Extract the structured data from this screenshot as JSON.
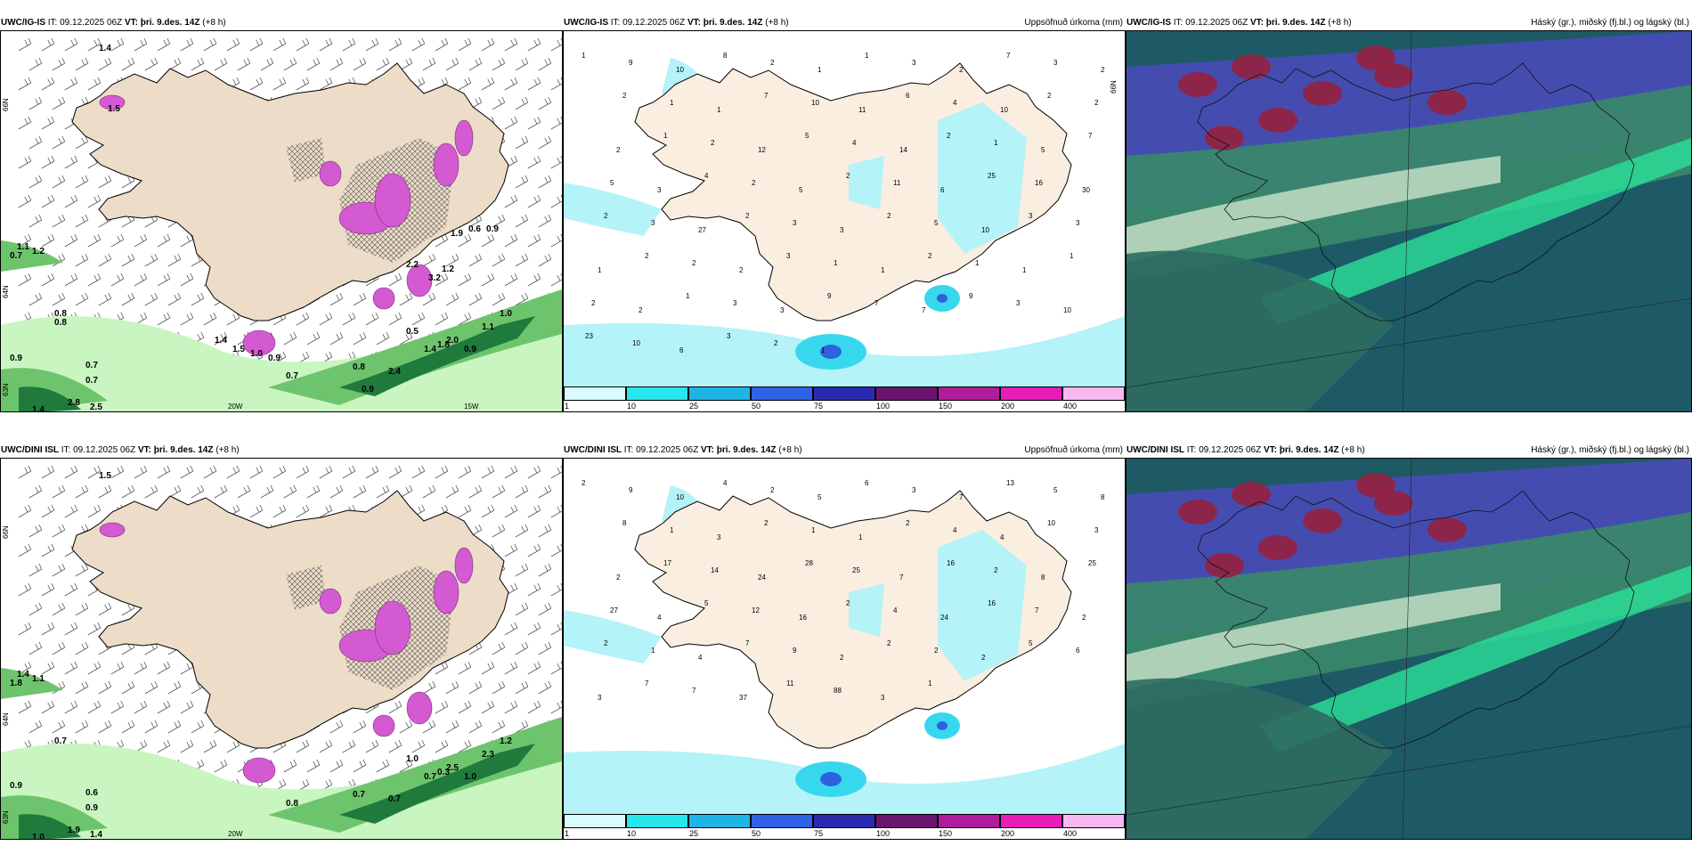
{
  "colors": {
    "land": "#ecdcc8",
    "sea": "#ffffff",
    "magenta": "#d45ad2",
    "green_light": "#c9f5c1",
    "green_mid": "#6ec46c",
    "green_dark": "#1f7a3c",
    "cyan_light": "#b4f3f7",
    "cyan": "#37d8ee",
    "blue": "#3060e0",
    "purple": "#4830b0"
  },
  "panels": [
    {
      "id": "ig-precip",
      "model": "UWC/IG-IS",
      "it_label": "IT:",
      "it": "09.12.2025 06Z",
      "vt_label": "VT:",
      "vt": "þri. 9.des. 14Z",
      "lead": "(+8 h)",
      "right_title": "",
      "axis": {
        "lat1": "66N",
        "lat2": "64N",
        "lat3": "63N",
        "lon1": "20W",
        "lon2": "15W"
      },
      "values": [
        "1.4",
        "0.7",
        "1.1",
        "1.2",
        "0.8",
        "0.9",
        "0.7",
        "0.7",
        "2.8",
        "2.5",
        "1.4",
        "0.9",
        "0.7",
        "0.8",
        "2.4",
        "0.5",
        "1.4",
        "1.8",
        "2.0",
        "1.1",
        "1.0",
        "0.9",
        "2.2",
        "3.2",
        "1.2",
        "0.6",
        "0.9",
        "1.9",
        "1.4",
        "1.5",
        "1.0",
        "0.9",
        "1.5",
        "0.8"
      ]
    },
    {
      "id": "ig-accum",
      "model": "UWC/IG-IS",
      "it_label": "IT:",
      "it": "09.12.2025 06Z",
      "vt_label": "VT:",
      "vt": "þri. 9.des. 14Z",
      "lead": "(+8 h)",
      "right_title": "Uppsöfnuð úrkoma (mm)",
      "axis": {
        "lat1": "66N",
        "lat2": "",
        "lat3": "",
        "lon1": "",
        "lon2": ""
      },
      "values": [
        "1",
        "9",
        "10",
        "8",
        "2",
        "1",
        "1",
        "3",
        "2",
        "7",
        "3",
        "2",
        "2",
        "1",
        "1",
        "7",
        "10",
        "11",
        "6",
        "4",
        "10",
        "2",
        "2",
        "2",
        "1",
        "2",
        "12",
        "5",
        "4",
        "14",
        "2",
        "1",
        "5",
        "7",
        "5",
        "3",
        "4",
        "2",
        "5",
        "2",
        "11",
        "6",
        "25",
        "16",
        "30",
        "2",
        "3",
        "27",
        "2",
        "3",
        "3",
        "2",
        "5",
        "10",
        "3",
        "3",
        "1",
        "2",
        "2",
        "2",
        "3",
        "1",
        "1",
        "2",
        "1",
        "1",
        "1",
        "2",
        "2",
        "1",
        "3",
        "3",
        "9",
        "7",
        "7",
        "9",
        "3",
        "10",
        "23",
        "10",
        "6",
        "3",
        "2",
        "1"
      ],
      "colorbar": [
        "1",
        "10",
        "25",
        "50",
        "75",
        "100",
        "150",
        "200",
        "400"
      ]
    },
    {
      "id": "ig-cloud",
      "model": "UWC/IG-IS",
      "it_label": "IT:",
      "it": "09.12.2025 06Z",
      "vt_label": "VT:",
      "vt": "þri. 9.des. 14Z",
      "lead": "(+8 h)",
      "right_title": "Háský (gr.), miðský (fj.bl.) og lágský (bl.)"
    },
    {
      "id": "dini-precip",
      "model": "UWC/DINI ISL",
      "it_label": "IT:",
      "it": "09.12.2025 06Z",
      "vt_label": "VT:",
      "vt": "þri. 9.des. 14Z",
      "lead": "(+8 h)",
      "right_title": "",
      "axis": {
        "lat1": "66N",
        "lat2": "64N",
        "lat3": "63N",
        "lon1": "20W",
        "lon2": ""
      },
      "values": [
        "1.5",
        "1.8",
        "1.4",
        "1.1",
        "0.7",
        "0.9",
        "0.6",
        "0.9",
        "1.9",
        "1.4",
        "1.0",
        "1.0",
        "0.8",
        "0.7",
        "0.7",
        "1.0",
        "0.7",
        "0.3",
        "2.5",
        "2.3",
        "1.2"
      ]
    },
    {
      "id": "dini-accum",
      "model": "UWC/DINI ISL",
      "it_label": "IT:",
      "it": "09.12.2025 06Z",
      "vt_label": "VT:",
      "vt": "þri. 9.des. 14Z",
      "lead": "(+8 h)",
      "right_title": "Uppsöfnuð úrkoma (mm)",
      "axis": {
        "lat1": "",
        "lat2": "",
        "lat3": "",
        "lon1": "",
        "lon2": ""
      },
      "values": [
        "2",
        "9",
        "10",
        "4",
        "2",
        "5",
        "6",
        "3",
        "7",
        "13",
        "5",
        "8",
        "8",
        "1",
        "3",
        "2",
        "1",
        "1",
        "2",
        "4",
        "4",
        "10",
        "3",
        "2",
        "17",
        "14",
        "24",
        "28",
        "25",
        "7",
        "16",
        "2",
        "8",
        "25",
        "27",
        "4",
        "5",
        "12",
        "16",
        "2",
        "4",
        "24",
        "16",
        "7",
        "2",
        "2",
        "1",
        "4",
        "7",
        "9",
        "2",
        "2",
        "2",
        "2",
        "5",
        "6",
        "3",
        "7",
        "7",
        "37",
        "11",
        "88",
        "3",
        "1"
      ],
      "colorbar": [
        "1",
        "10",
        "25",
        "50",
        "75",
        "100",
        "150",
        "200",
        "400"
      ]
    },
    {
      "id": "dini-cloud",
      "model": "UWC/DINI ISL",
      "it_label": "IT:",
      "it": "09.12.2025 06Z",
      "vt_label": "VT:",
      "vt": "þri. 9.des. 14Z",
      "lead": "(+8 h)",
      "right_title": "Háský (gr.), miðský (fj.bl.) og lágský (bl.)"
    }
  ]
}
